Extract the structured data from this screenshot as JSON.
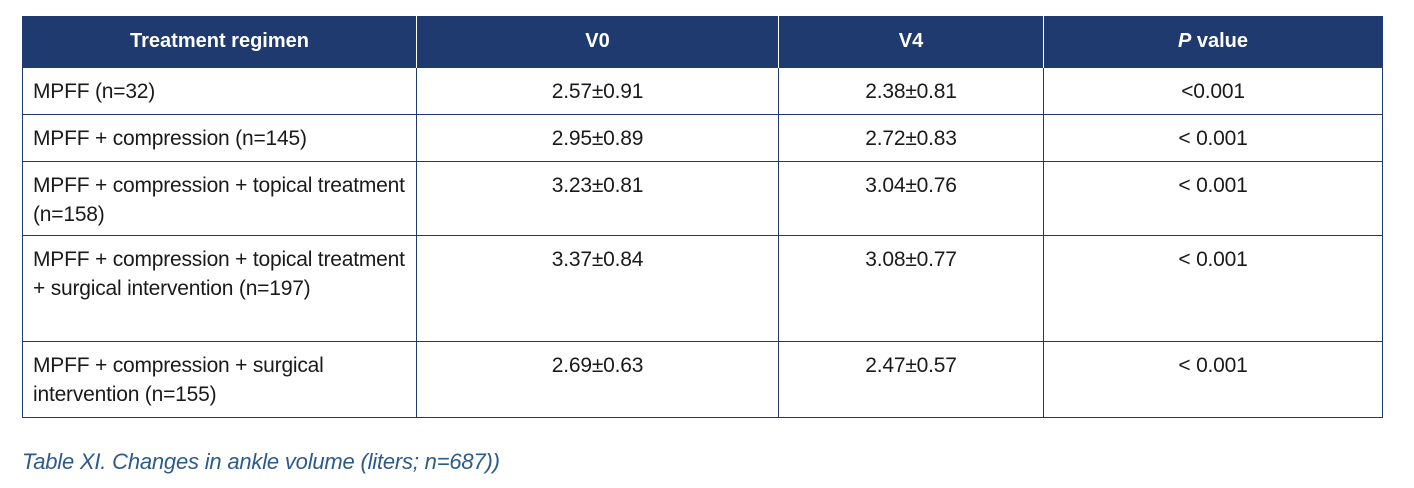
{
  "table": {
    "headers": {
      "regimen": "Treatment regimen",
      "v0": "V0",
      "v4": "V4",
      "p_italic": "P",
      "p_rest": " value"
    },
    "rows": [
      {
        "regimen": "MPFF (n=32)",
        "v0": "2.57±0.91",
        "v4": "2.38±0.81",
        "p": "<0.001"
      },
      {
        "regimen": "MPFF + compression (n=145)",
        "v0": "2.95±0.89",
        "v4": "2.72±0.83",
        "p": "< 0.001"
      },
      {
        "regimen": "MPFF + compression + topical treatment (n=158)",
        "v0": "3.23±0.81",
        "v4": "3.04±0.76",
        "p": "< 0.001"
      },
      {
        "regimen": "MPFF + compression + topical treatment + surgical intervention (n=197)",
        "v0": "3.37±0.84",
        "v4": "3.08±0.77",
        "p": "< 0.001"
      },
      {
        "regimen": "MPFF + compression + surgical intervention (n=155)",
        "v0": "2.69±0.63",
        "v4": "2.47±0.57",
        "p": "< 0.001"
      }
    ]
  },
  "caption": "Table XI. Changes in ankle volume (liters; n=687))",
  "colors": {
    "header_bg": "#1e3a6e",
    "border": "#1e3a6e",
    "caption": "#2d5a8c"
  }
}
